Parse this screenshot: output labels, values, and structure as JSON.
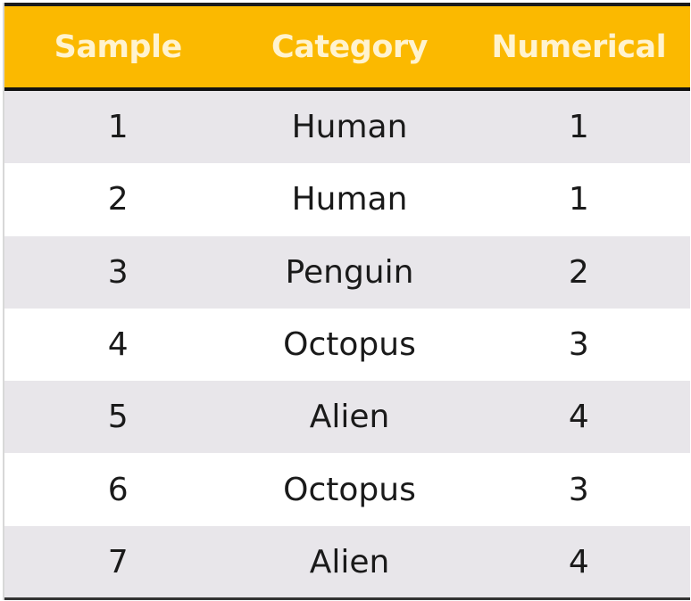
{
  "table": {
    "headers": [
      "Sample",
      "Category",
      "Numerical"
    ],
    "rows": [
      [
        "1",
        "Human",
        "1"
      ],
      [
        "2",
        "Human",
        "1"
      ],
      [
        "3",
        "Penguin",
        "2"
      ],
      [
        "4",
        "Octopus",
        "3"
      ],
      [
        "5",
        "Alien",
        "4"
      ],
      [
        "6",
        "Octopus",
        "3"
      ],
      [
        "7",
        "Alien",
        "4"
      ]
    ]
  },
  "colors": {
    "header_background": "#fbb900",
    "header_text": "#fff3cf",
    "shaded_row": "#e8e6ea",
    "plain_row": "#ffffff"
  }
}
